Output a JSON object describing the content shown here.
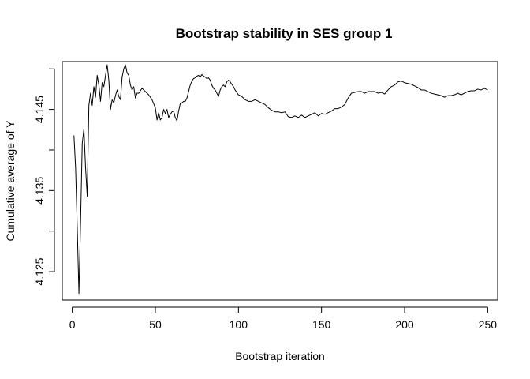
{
  "chart_data": {
    "type": "line",
    "title": "Bootstrap stability in SES group 1",
    "xlabel": "Bootstrap iteration",
    "ylabel": "Cumulative average of Y",
    "xlim": [
      -6,
      256
    ],
    "ylim": [
      4.1215,
      4.1509
    ],
    "x_ticks": [
      0,
      50,
      100,
      150,
      200,
      250
    ],
    "x_tick_labels": [
      "0",
      "50",
      "100",
      "150",
      "200",
      "250"
    ],
    "y_ticks": [
      4.125,
      4.13,
      4.135,
      4.14,
      4.145,
      4.15
    ],
    "y_tick_labels": [
      "4.125",
      "",
      "4.135",
      "",
      "4.145",
      ""
    ],
    "grid": false,
    "legend": "none",
    "line_color": "#000000",
    "series": [
      {
        "points": [
          [
            1,
            4.1418
          ],
          [
            2,
            4.1378
          ],
          [
            3,
            4.1304
          ],
          [
            4,
            4.1223
          ],
          [
            5,
            4.1312
          ],
          [
            6,
            4.1408
          ],
          [
            7,
            4.1426
          ],
          [
            8,
            4.1378
          ],
          [
            9,
            4.1343
          ],
          [
            10,
            4.1455
          ],
          [
            11,
            4.147
          ],
          [
            12,
            4.1455
          ],
          [
            13,
            4.1478
          ],
          [
            14,
            4.1465
          ],
          [
            15,
            4.1492
          ],
          [
            16,
            4.148
          ],
          [
            17,
            4.146
          ],
          [
            18,
            4.1483
          ],
          [
            19,
            4.1478
          ],
          [
            20,
            4.1492
          ],
          [
            21,
            4.1505
          ],
          [
            22,
            4.1486
          ],
          [
            23,
            4.145
          ],
          [
            24,
            4.1462
          ],
          [
            25,
            4.1458
          ],
          [
            26,
            4.1467
          ],
          [
            27,
            4.1474
          ],
          [
            28,
            4.1466
          ],
          [
            29,
            4.1462
          ],
          [
            30,
            4.149
          ],
          [
            31,
            4.15
          ],
          [
            32,
            4.1505
          ],
          [
            33,
            4.1495
          ],
          [
            34,
            4.1492
          ],
          [
            35,
            4.148
          ],
          [
            36,
            4.1474
          ],
          [
            37,
            4.1478
          ],
          [
            38,
            4.1464
          ],
          [
            39,
            4.147
          ],
          [
            40,
            4.147
          ],
          [
            42,
            4.1476
          ],
          [
            44,
            4.1472
          ],
          [
            46,
            4.1468
          ],
          [
            48,
            4.1462
          ],
          [
            50,
            4.1452
          ],
          [
            51,
            4.1437
          ],
          [
            52,
            4.1446
          ],
          [
            53,
            4.1437
          ],
          [
            54,
            4.144
          ],
          [
            55,
            4.145
          ],
          [
            56,
            4.1445
          ],
          [
            57,
            4.145
          ],
          [
            58,
            4.144
          ],
          [
            59,
            4.1444
          ],
          [
            60,
            4.1447
          ],
          [
            61,
            4.1448
          ],
          [
            62,
            4.144
          ],
          [
            63,
            4.1436
          ],
          [
            64,
            4.1448
          ],
          [
            65,
            4.1457
          ],
          [
            66,
            4.1458
          ],
          [
            67,
            4.146
          ],
          [
            68,
            4.146
          ],
          [
            69,
            4.1464
          ],
          [
            70,
            4.1472
          ],
          [
            71,
            4.148
          ],
          [
            72,
            4.1485
          ],
          [
            73,
            4.1488
          ],
          [
            74,
            4.1489
          ],
          [
            75,
            4.1491
          ],
          [
            76,
            4.1492
          ],
          [
            77,
            4.149
          ],
          [
            78,
            4.1493
          ],
          [
            79,
            4.1491
          ],
          [
            80,
            4.149
          ],
          [
            81,
            4.1488
          ],
          [
            82,
            4.1489
          ],
          [
            83,
            4.1486
          ],
          [
            84,
            4.148
          ],
          [
            85,
            4.1476
          ],
          [
            86,
            4.1474
          ],
          [
            87,
            4.147
          ],
          [
            88,
            4.1466
          ],
          [
            89,
            4.1474
          ],
          [
            90,
            4.1478
          ],
          [
            91,
            4.148
          ],
          [
            92,
            4.1478
          ],
          [
            93,
            4.1484
          ],
          [
            94,
            4.1486
          ],
          [
            95,
            4.1484
          ],
          [
            96,
            4.1481
          ],
          [
            97,
            4.1478
          ],
          [
            98,
            4.1474
          ],
          [
            99,
            4.1471
          ],
          [
            100,
            4.1468
          ],
          [
            102,
            4.1466
          ],
          [
            104,
            4.1462
          ],
          [
            106,
            4.146
          ],
          [
            108,
            4.146
          ],
          [
            110,
            4.1462
          ],
          [
            112,
            4.146
          ],
          [
            114,
            4.1458
          ],
          [
            116,
            4.1456
          ],
          [
            118,
            4.1452
          ],
          [
            120,
            4.1449
          ],
          [
            122,
            4.1447
          ],
          [
            124,
            4.1447
          ],
          [
            126,
            4.1446
          ],
          [
            128,
            4.1447
          ],
          [
            130,
            4.1441
          ],
          [
            132,
            4.144
          ],
          [
            134,
            4.1442
          ],
          [
            136,
            4.144
          ],
          [
            138,
            4.1443
          ],
          [
            140,
            4.144
          ],
          [
            142,
            4.1442
          ],
          [
            144,
            4.1444
          ],
          [
            146,
            4.1446
          ],
          [
            148,
            4.1442
          ],
          [
            150,
            4.1445
          ],
          [
            152,
            4.1444
          ],
          [
            154,
            4.1446
          ],
          [
            156,
            4.1448
          ],
          [
            158,
            4.1451
          ],
          [
            160,
            4.1451
          ],
          [
            162,
            4.1453
          ],
          [
            164,
            4.1456
          ],
          [
            166,
            4.1464
          ],
          [
            168,
            4.147
          ],
          [
            170,
            4.1471
          ],
          [
            172,
            4.1472
          ],
          [
            174,
            4.1472
          ],
          [
            176,
            4.147
          ],
          [
            178,
            4.1472
          ],
          [
            180,
            4.1472
          ],
          [
            182,
            4.1472
          ],
          [
            184,
            4.147
          ],
          [
            186,
            4.1471
          ],
          [
            188,
            4.1469
          ],
          [
            190,
            4.1474
          ],
          [
            192,
            4.1478
          ],
          [
            194,
            4.148
          ],
          [
            196,
            4.1484
          ],
          [
            198,
            4.1485
          ],
          [
            200,
            4.1483
          ],
          [
            202,
            4.1482
          ],
          [
            204,
            4.1481
          ],
          [
            206,
            4.1479
          ],
          [
            208,
            4.1477
          ],
          [
            210,
            4.1474
          ],
          [
            212,
            4.1474
          ],
          [
            214,
            4.1472
          ],
          [
            216,
            4.147
          ],
          [
            218,
            4.1469
          ],
          [
            220,
            4.1468
          ],
          [
            222,
            4.1467
          ],
          [
            224,
            4.1465
          ],
          [
            226,
            4.1467
          ],
          [
            228,
            4.1467
          ],
          [
            230,
            4.1468
          ],
          [
            232,
            4.147
          ],
          [
            234,
            4.1468
          ],
          [
            236,
            4.147
          ],
          [
            238,
            4.1472
          ],
          [
            240,
            4.1473
          ],
          [
            242,
            4.1473
          ],
          [
            244,
            4.1475
          ],
          [
            246,
            4.1474
          ],
          [
            248,
            4.1476
          ],
          [
            250,
            4.1474
          ]
        ]
      }
    ]
  }
}
